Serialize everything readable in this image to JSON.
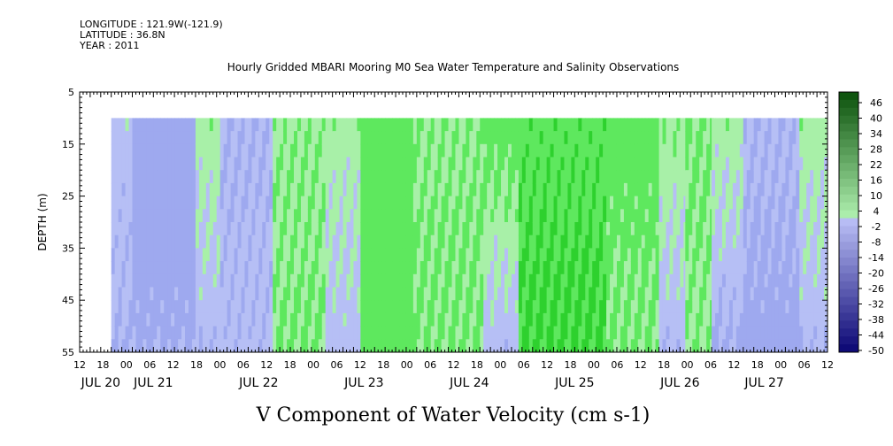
{
  "header": {
    "longitude": "LONGITUDE : 121.9W(-121.9)",
    "latitude": "LATITUDE : 36.8N",
    "year": "YEAR : 2011"
  },
  "chart_data": {
    "type": "heatmap",
    "title": "Hourly Gridded MBARI Mooring M0 Sea Water Temperature and Salinity Observations",
    "variable_title": "V Component of Water Velocity (cm s-1)",
    "ylabel": "DEPTH (m)",
    "y_ticks": [
      5,
      15,
      25,
      35,
      45,
      55
    ],
    "ylim": [
      55,
      5
    ],
    "hour_ticks": [
      "12",
      "18",
      "00",
      "06",
      "12",
      "18",
      "00",
      "06",
      "12",
      "18",
      "00",
      "06",
      "12",
      "18",
      "00",
      "06",
      "12",
      "18",
      "00",
      "06",
      "12",
      "18",
      "00",
      "06",
      "12",
      "18",
      "00",
      "06",
      "12",
      "18",
      "00",
      "06",
      "12"
    ],
    "day_labels": [
      "JUL 20",
      "JUL 21",
      "JUL 22",
      "JUL 23",
      "JUL 24",
      "JUL 25",
      "JUL 26",
      "JUL 27"
    ],
    "day_label_hours": [
      12,
      42,
      102,
      162,
      222,
      282,
      342,
      390
    ],
    "x_start_hour": 0,
    "x_end_hour": 426,
    "data_start_hour": 18,
    "data_depth_range": [
      10,
      55
    ],
    "colorbar_labels": [
      "46",
      "40",
      "34",
      "28",
      "22",
      "16",
      "10",
      "4",
      "-2",
      "-8",
      "-14",
      "-20",
      "-26",
      "-32",
      "-38",
      "-44",
      "-50"
    ],
    "colorbar_range": [
      -50,
      49
    ],
    "colors": {
      "neg_strong": "#5a6be0",
      "neg": "#9ea9ef",
      "neg_light": "#b6bff5",
      "pos_light": "#a8f0a8",
      "pos": "#5ee85e",
      "pos_strong": "#2ed12e"
    },
    "profile_by_period": [
      {
        "from_hour": 18,
        "to_hour": 30,
        "shallow": -2,
        "deep": -5
      },
      {
        "from_hour": 30,
        "to_hour": 66,
        "shallow": -10,
        "deep": -6
      },
      {
        "from_hour": 66,
        "to_hour": 80,
        "shallow": 3,
        "deep": -4
      },
      {
        "from_hour": 80,
        "to_hour": 110,
        "shallow": -5,
        "deep": -3
      },
      {
        "from_hour": 110,
        "to_hour": 140,
        "shallow": 4,
        "deep": 6
      },
      {
        "from_hour": 140,
        "to_hour": 160,
        "shallow": 3,
        "deep": -3
      },
      {
        "from_hour": 160,
        "to_hour": 190,
        "shallow": 8,
        "deep": 10
      },
      {
        "from_hour": 190,
        "to_hour": 230,
        "shallow": 5,
        "deep": 6
      },
      {
        "from_hour": 230,
        "to_hour": 250,
        "shallow": 8,
        "deep": -4
      },
      {
        "from_hour": 250,
        "to_hour": 300,
        "shallow": 10,
        "deep": 13
      },
      {
        "from_hour": 300,
        "to_hour": 330,
        "shallow": 8,
        "deep": 5
      },
      {
        "from_hour": 330,
        "to_hour": 345,
        "shallow": 4,
        "deep": -4
      },
      {
        "from_hour": 345,
        "to_hour": 360,
        "shallow": 6,
        "deep": 4
      },
      {
        "from_hour": 360,
        "to_hour": 378,
        "shallow": 3,
        "deep": -6
      },
      {
        "from_hour": 378,
        "to_hour": 410,
        "shallow": -4,
        "deep": -8
      },
      {
        "from_hour": 410,
        "to_hour": 426,
        "shallow": 3,
        "deep": -4
      }
    ]
  }
}
